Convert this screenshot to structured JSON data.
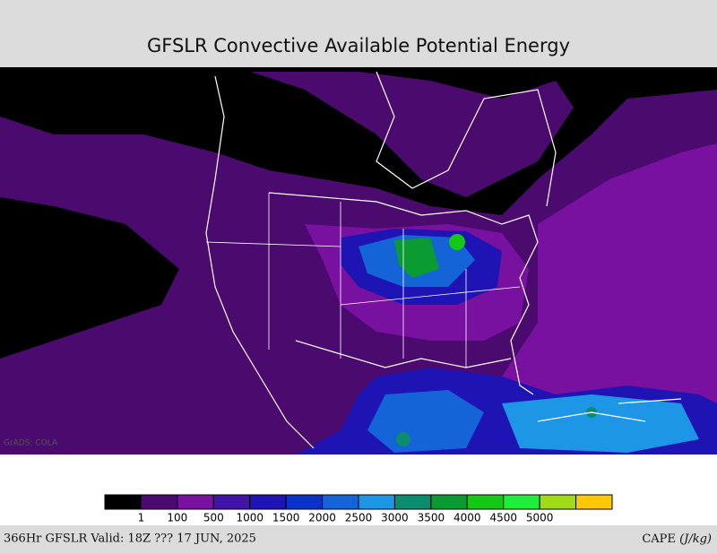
{
  "header": {
    "title": "GFSLR Convective Available Potential Energy"
  },
  "map": {
    "watermark": "GrADS: COLA"
  },
  "legend": {
    "colors": [
      "#000000",
      "#4b0a6e",
      "#7810a0",
      "#4014a8",
      "#1e14b4",
      "#0a32c8",
      "#1464d8",
      "#1e96e6",
      "#0a8c6e",
      "#0a9b32",
      "#14c814",
      "#1eef3c",
      "#a0dc14",
      "#ffc800"
    ],
    "labels": [
      1,
      100,
      500,
      1000,
      1500,
      2000,
      2500,
      3000,
      3500,
      4000,
      4500,
      5000
    ]
  },
  "footer": {
    "left": "366Hr GFSLR Valid: 18Z ??? 17 JUN, 2025",
    "right_name": "CAPE",
    "right_units": "(J/kg)"
  }
}
